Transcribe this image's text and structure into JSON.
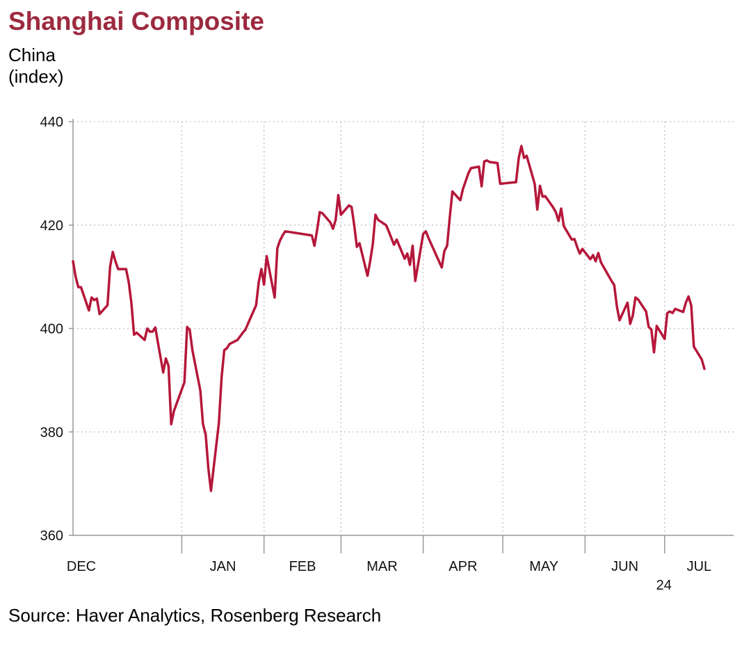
{
  "title": "Shanghai Composite",
  "subtitle_line1": "China",
  "subtitle_line2": "(index)",
  "source": "Source: Haver Analytics, Rosenberg Research",
  "colors": {
    "title": "#9c2a3f",
    "line": "#b5173a",
    "grid": "#c8c8c8",
    "axis": "#999999"
  },
  "chart_data": {
    "type": "line",
    "title": "Shanghai Composite",
    "ylabel": "(index)",
    "xlabel": "",
    "ylim": [
      360,
      440
    ],
    "yticks": [
      360,
      380,
      400,
      420,
      440
    ],
    "grid": true,
    "legend": "none",
    "xlim": [
      "2023-11-21",
      "2024-07-27"
    ],
    "months": [
      {
        "label": "DEC",
        "date": "2023-12-01"
      },
      {
        "label": "JAN",
        "date": "2024-01-01"
      },
      {
        "label": "FEB",
        "date": "2024-02-01"
      },
      {
        "label": "MAR",
        "date": "2024-03-01"
      },
      {
        "label": "APR",
        "date": "2024-04-01"
      },
      {
        "label": "MAY",
        "date": "2024-05-01"
      },
      {
        "label": "JUN",
        "date": "2024-06-01"
      },
      {
        "label": "JUL",
        "date": "2024-07-01"
      }
    ],
    "year_label": "24",
    "series": [
      {
        "values": [
          [
            "2023-11-21",
            413.0
          ],
          [
            "2023-11-22",
            410.0
          ],
          [
            "2023-11-23",
            408.0
          ],
          [
            "2023-11-24",
            408.0
          ],
          [
            "2023-11-27",
            403.5
          ],
          [
            "2023-11-28",
            406.0
          ],
          [
            "2023-11-29",
            405.5
          ],
          [
            "2023-11-30",
            405.8
          ],
          [
            "2023-12-01",
            402.8
          ],
          [
            "2023-12-04",
            404.5
          ],
          [
            "2023-12-05",
            412.0
          ],
          [
            "2023-12-06",
            414.8
          ],
          [
            "2023-12-07",
            413.0
          ],
          [
            "2023-12-08",
            411.5
          ],
          [
            "2023-12-11",
            411.5
          ],
          [
            "2023-12-12",
            409.0
          ],
          [
            "2023-12-13",
            405.0
          ],
          [
            "2023-12-14",
            398.8
          ],
          [
            "2023-12-15",
            399.2
          ],
          [
            "2023-12-18",
            397.8
          ],
          [
            "2023-12-19",
            400.0
          ],
          [
            "2023-12-20",
            399.4
          ],
          [
            "2023-12-21",
            399.4
          ],
          [
            "2023-12-22",
            400.2
          ],
          [
            "2023-12-25",
            391.5
          ],
          [
            "2023-12-26",
            394.2
          ],
          [
            "2023-12-27",
            392.8
          ],
          [
            "2023-12-28",
            381.5
          ],
          [
            "2023-12-29",
            384.0
          ],
          [
            "2024-01-02",
            389.6
          ],
          [
            "2024-01-03",
            400.3
          ],
          [
            "2024-01-04",
            399.7
          ],
          [
            "2024-01-05",
            395.8
          ],
          [
            "2024-01-08",
            388.0
          ],
          [
            "2024-01-09",
            381.5
          ],
          [
            "2024-01-10",
            379.5
          ],
          [
            "2024-01-11",
            373.0
          ],
          [
            "2024-01-12",
            368.6
          ],
          [
            "2024-01-15",
            381.8
          ],
          [
            "2024-01-16",
            390.6
          ],
          [
            "2024-01-17",
            395.8
          ],
          [
            "2024-01-18",
            396.2
          ],
          [
            "2024-01-19",
            397.0
          ],
          [
            "2024-01-22",
            397.8
          ],
          [
            "2024-01-23",
            398.5
          ],
          [
            "2024-01-24",
            399.2
          ],
          [
            "2024-01-25",
            399.8
          ],
          [
            "2024-01-26",
            401.0
          ],
          [
            "2024-01-29",
            404.5
          ],
          [
            "2024-01-30",
            409.0
          ],
          [
            "2024-01-31",
            411.5
          ],
          [
            "2024-02-01",
            408.5
          ],
          [
            "2024-02-02",
            414.0
          ],
          [
            "2024-02-05",
            406.0
          ],
          [
            "2024-02-06",
            415.5
          ],
          [
            "2024-02-07",
            417.0
          ],
          [
            "2024-02-08",
            418.0
          ],
          [
            "2024-02-09",
            418.8
          ],
          [
            "2024-02-19",
            418.0
          ],
          [
            "2024-02-20",
            416.0
          ],
          [
            "2024-02-21",
            419.0
          ],
          [
            "2024-02-22",
            422.5
          ],
          [
            "2024-02-23",
            422.3
          ],
          [
            "2024-02-26",
            420.5
          ],
          [
            "2024-02-27",
            419.3
          ],
          [
            "2024-02-28",
            421.0
          ],
          [
            "2024-02-29",
            425.8
          ],
          [
            "2024-03-01",
            422.0
          ],
          [
            "2024-03-04",
            423.8
          ],
          [
            "2024-03-05",
            423.5
          ],
          [
            "2024-03-06",
            420.0
          ],
          [
            "2024-03-07",
            415.8
          ],
          [
            "2024-03-08",
            416.5
          ],
          [
            "2024-03-11",
            410.2
          ],
          [
            "2024-03-12",
            413.0
          ],
          [
            "2024-03-13",
            416.3
          ],
          [
            "2024-03-14",
            422.0
          ],
          [
            "2024-03-15",
            421.0
          ],
          [
            "2024-03-18",
            420.0
          ],
          [
            "2024-03-19",
            418.8
          ],
          [
            "2024-03-20",
            417.5
          ],
          [
            "2024-03-21",
            416.2
          ],
          [
            "2024-03-22",
            417.2
          ],
          [
            "2024-03-25",
            413.5
          ],
          [
            "2024-03-26",
            414.5
          ],
          [
            "2024-03-27",
            412.3
          ],
          [
            "2024-03-28",
            416.0
          ],
          [
            "2024-03-29",
            409.2
          ],
          [
            "2024-04-01",
            418.3
          ],
          [
            "2024-04-02",
            418.8
          ],
          [
            "2024-04-03",
            417.5
          ],
          [
            "2024-04-08",
            411.8
          ],
          [
            "2024-04-09",
            415.0
          ],
          [
            "2024-04-10",
            416.0
          ],
          [
            "2024-04-11",
            421.5
          ],
          [
            "2024-04-12",
            426.5
          ],
          [
            "2024-04-15",
            424.8
          ],
          [
            "2024-04-16",
            427.0
          ],
          [
            "2024-04-17",
            428.5
          ],
          [
            "2024-04-18",
            430.0
          ],
          [
            "2024-04-19",
            431.0
          ],
          [
            "2024-04-22",
            431.3
          ],
          [
            "2024-04-23",
            427.5
          ],
          [
            "2024-04-24",
            432.3
          ],
          [
            "2024-04-25",
            432.5
          ],
          [
            "2024-04-26",
            432.2
          ],
          [
            "2024-04-29",
            432.0
          ],
          [
            "2024-04-30",
            428.0
          ],
          [
            "2024-05-06",
            428.3
          ],
          [
            "2024-05-07",
            433.0
          ],
          [
            "2024-05-08",
            435.3
          ],
          [
            "2024-05-09",
            433.0
          ],
          [
            "2024-05-10",
            433.4
          ],
          [
            "2024-05-13",
            428.0
          ],
          [
            "2024-05-14",
            423.0
          ],
          [
            "2024-05-15",
            427.6
          ],
          [
            "2024-05-16",
            425.5
          ],
          [
            "2024-05-17",
            425.6
          ],
          [
            "2024-05-20",
            423.4
          ],
          [
            "2024-05-21",
            422.5
          ],
          [
            "2024-05-22",
            420.8
          ],
          [
            "2024-05-23",
            423.2
          ],
          [
            "2024-05-24",
            419.8
          ],
          [
            "2024-05-27",
            417.2
          ],
          [
            "2024-05-28",
            417.3
          ],
          [
            "2024-05-29",
            415.8
          ],
          [
            "2024-05-30",
            414.5
          ],
          [
            "2024-05-31",
            415.4
          ],
          [
            "2024-06-03",
            413.4
          ],
          [
            "2024-06-04",
            414.2
          ],
          [
            "2024-06-05",
            413.0
          ],
          [
            "2024-06-06",
            414.6
          ],
          [
            "2024-06-07",
            412.8
          ],
          [
            "2024-06-11",
            409.2
          ],
          [
            "2024-06-12",
            408.4
          ],
          [
            "2024-06-13",
            404.3
          ],
          [
            "2024-06-14",
            401.6
          ],
          [
            "2024-06-17",
            405.0
          ],
          [
            "2024-06-18",
            400.9
          ],
          [
            "2024-06-19",
            402.5
          ],
          [
            "2024-06-20",
            406.0
          ],
          [
            "2024-06-21",
            405.6
          ],
          [
            "2024-06-24",
            403.3
          ],
          [
            "2024-06-25",
            400.3
          ],
          [
            "2024-06-26",
            399.8
          ],
          [
            "2024-06-27",
            395.4
          ],
          [
            "2024-06-28",
            400.5
          ],
          [
            "2024-07-01",
            398.0
          ],
          [
            "2024-07-02",
            403.0
          ],
          [
            "2024-07-03",
            403.3
          ],
          [
            "2024-07-04",
            403.0
          ],
          [
            "2024-07-05",
            403.8
          ],
          [
            "2024-07-08",
            403.2
          ],
          [
            "2024-07-09",
            405.0
          ],
          [
            "2024-07-10",
            406.2
          ],
          [
            "2024-07-11",
            404.5
          ],
          [
            "2024-07-12",
            396.5
          ],
          [
            "2024-07-15",
            394.0
          ],
          [
            "2024-07-16",
            392.2
          ]
        ]
      }
    ]
  }
}
